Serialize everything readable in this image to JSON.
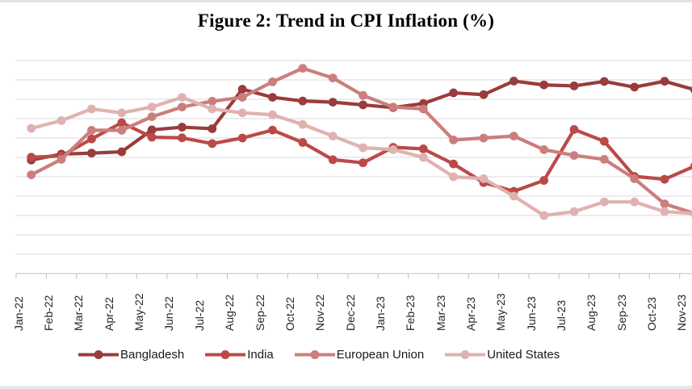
{
  "figure": {
    "title": "Figure 2: Trend in CPI Inflation (%)"
  },
  "chart_data": {
    "type": "line",
    "x": [
      "Jan-22",
      "Feb-22",
      "Mar-22",
      "Apr-22",
      "May-22",
      "Jun-22",
      "Jul-22",
      "Aug-22",
      "Sep-22",
      "Oct-22",
      "Nov-22",
      "Dec-22",
      "Jan-23",
      "Feb-23",
      "Mar-23",
      "Apr-23",
      "May-23",
      "Jun-23",
      "Jul-23",
      "Aug-23",
      "Sep-23",
      "Oct-23",
      "Nov-23"
    ],
    "series": [
      {
        "name": "Bangladesh",
        "color": "#9A3B3C",
        "values": [
          5.86,
          6.17,
          6.22,
          6.29,
          7.42,
          7.56,
          7.48,
          9.52,
          9.1,
          8.91,
          8.85,
          8.71,
          8.57,
          8.78,
          9.33,
          9.24,
          9.94,
          9.74,
          9.69,
          9.92,
          9.63,
          9.93,
          9.49
        ]
      },
      {
        "name": "India",
        "color": "#BB4A47",
        "values": [
          6.01,
          6.07,
          6.95,
          7.79,
          7.04,
          7.01,
          6.71,
          7.0,
          7.41,
          6.77,
          5.88,
          5.72,
          6.52,
          6.44,
          5.66,
          4.7,
          4.25,
          4.81,
          7.44,
          6.83,
          5.02,
          4.87,
          5.55
        ]
      },
      {
        "name": "European Union",
        "color": "#CB7E7C",
        "values": [
          5.1,
          5.9,
          7.4,
          7.4,
          8.1,
          8.6,
          8.9,
          9.1,
          9.9,
          10.6,
          10.1,
          9.2,
          8.6,
          8.5,
          6.9,
          7.0,
          7.1,
          6.4,
          6.1,
          5.9,
          4.9,
          3.6,
          3.1
        ]
      },
      {
        "name": "United States",
        "color": "#DFB2B0",
        "values": [
          7.5,
          7.9,
          8.5,
          8.3,
          8.6,
          9.1,
          8.5,
          8.3,
          8.2,
          7.7,
          7.1,
          6.5,
          6.4,
          6.0,
          5.0,
          4.9,
          4.0,
          3.0,
          3.2,
          3.7,
          3.7,
          3.2,
          3.1
        ]
      }
    ],
    "title": "Figure 2: Trend in CPI Inflation (%)",
    "xlabel": "",
    "ylabel": "",
    "ylim": [
      0,
      11
    ],
    "y_gridline_interval": 1,
    "y_axis_tick_labels_visible": false,
    "grid": true,
    "legend_position": "bottom",
    "x_tick_label_rotation": -90,
    "markers": "circle"
  },
  "colors": {
    "background": "#FFFFFF",
    "gridline": "#D9D9D9",
    "axis_line": "#BFBFBF",
    "title_text": "#000000",
    "tick_label_text": "#262626",
    "top_border_strip": "#E2E2E2",
    "bottom_border_strip": "#E7E7E7"
  }
}
